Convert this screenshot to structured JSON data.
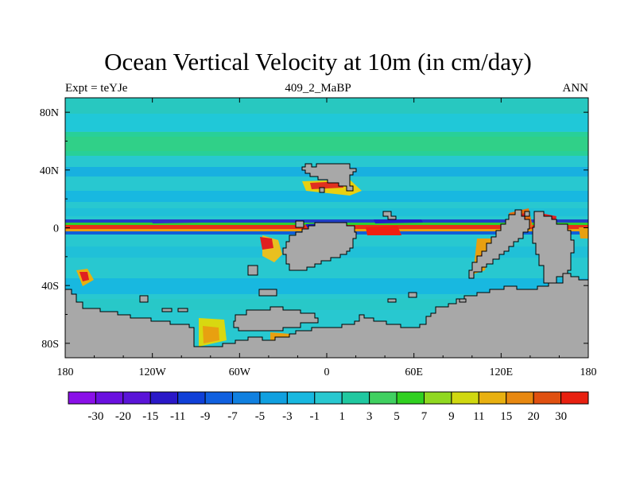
{
  "title": "Ocean Vertical Velocity at 10m (in cm/day)",
  "subtitle_left": "Expt = teYJe",
  "subtitle_center": "409_2_MaBP",
  "subtitle_right": "ANN",
  "colors": {
    "land": "#a8a8a8",
    "background_field": "#28c8d0",
    "upwelling_strong": "#e02020",
    "downwelling_strong": "#2020c8"
  },
  "chart_data": {
    "type": "heatmap",
    "projection": "cylindrical-equidistant",
    "variable": "Ocean vertical velocity at 10m",
    "units": "cm/day",
    "period": "ANN",
    "lon_range": [
      -180,
      180
    ],
    "lat_range": [
      -90,
      90
    ],
    "xtick_labels": [
      "180",
      "120W",
      "60W",
      "0",
      "60E",
      "120E",
      "180"
    ],
    "xtick_values": [
      -180,
      -120,
      -60,
      0,
      60,
      120,
      180
    ],
    "ytick_labels": [
      "80N",
      "40N",
      "0",
      "40S",
      "80S"
    ],
    "ytick_values": [
      80,
      40,
      0,
      -40,
      -80
    ],
    "colorbar": {
      "levels": [
        -30,
        -20,
        -15,
        -11,
        -9,
        -7,
        -5,
        -3,
        -1,
        1,
        3,
        5,
        7,
        9,
        11,
        15,
        20,
        30
      ],
      "labels": [
        "-30",
        "-20",
        "-15",
        "-11",
        "-9",
        "-7",
        "-5",
        "-3",
        "-1",
        "1",
        "3",
        "5",
        "7",
        "9",
        "11",
        "15",
        "20",
        "30"
      ],
      "colors": [
        "#8a10e8",
        "#6a10e0",
        "#5a14d8",
        "#2a18c8",
        "#1040d8",
        "#1060e0",
        "#1080e0",
        "#10a0e0",
        "#18b8e0",
        "#28c8d0",
        "#20c8a0",
        "#40d060",
        "#30d020",
        "#90d820",
        "#d0d810",
        "#e8b010",
        "#e88810",
        "#e05010",
        "#e82010"
      ]
    },
    "features": [
      {
        "name": "equatorial-upwelling",
        "lat": 0,
        "lon_range": [
          -180,
          180
        ],
        "sign": "positive"
      },
      {
        "name": "off-equatorial-downwelling",
        "lat": 5,
        "lon_range": [
          -180,
          180
        ],
        "sign": "negative"
      }
    ]
  }
}
